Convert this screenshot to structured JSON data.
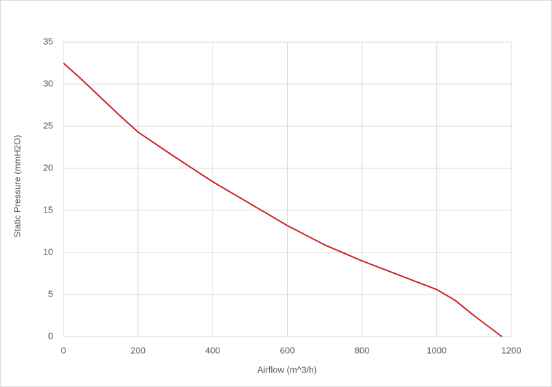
{
  "chart_data": {
    "type": "line",
    "x_label": "Airflow (m^3/h)",
    "y_label": "Static Pressure (mmH2O)",
    "x": [
      0,
      50,
      100,
      150,
      200,
      300,
      400,
      500,
      600,
      700,
      800,
      900,
      1000,
      1050,
      1100,
      1175
    ],
    "series": [
      {
        "name": "Static Pressure",
        "color": "#cc1f1f",
        "values": [
          32.5,
          30.5,
          28.4,
          26.3,
          24.3,
          21.3,
          18.4,
          15.8,
          13.2,
          10.9,
          9.0,
          7.3,
          5.6,
          4.3,
          2.5,
          0
        ]
      }
    ],
    "xlim": [
      0,
      1200
    ],
    "xticks": [
      0,
      200,
      400,
      600,
      800,
      1000,
      1200
    ],
    "ylim": [
      0,
      35
    ],
    "yticks": [
      0,
      5,
      10,
      15,
      20,
      25,
      30,
      35
    ],
    "grid": true
  }
}
